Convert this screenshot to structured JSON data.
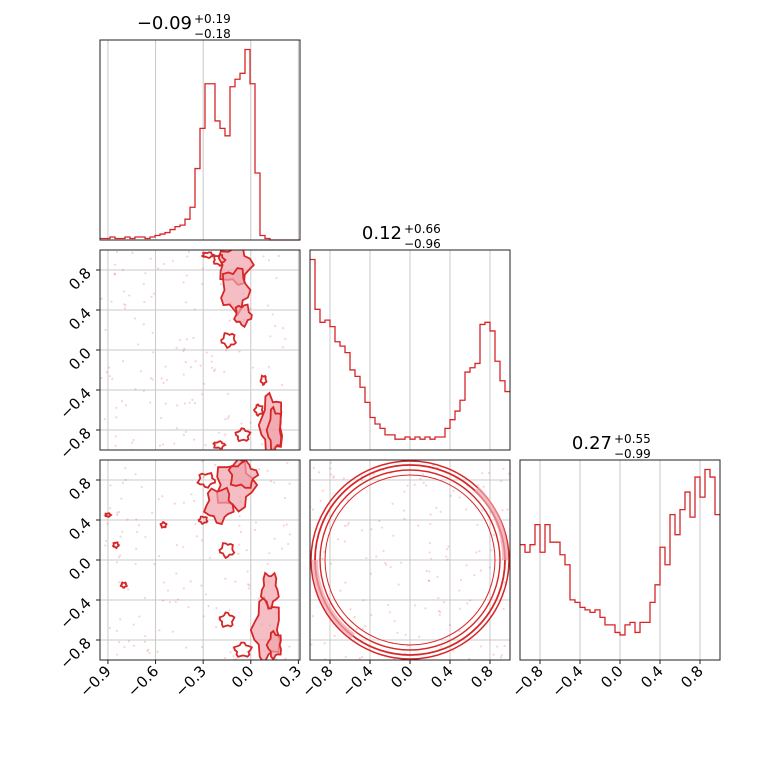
{
  "chart_data": {
    "type": "corner",
    "color": "#d62728",
    "fill_color": "#f0a3ab",
    "params": [
      {
        "median": "−0.09",
        "plus": "+0.19",
        "minus": "−0.18",
        "range": [
          -0.95,
          0.31
        ],
        "ticks": [
          -0.9,
          -0.6,
          -0.3,
          0.0,
          0.3
        ],
        "tick_labels": [
          "−0.9",
          "−0.6",
          "−0.3",
          "0.0",
          "0.3"
        ]
      },
      {
        "median": "0.12",
        "plus": "+0.66",
        "minus": "−0.96",
        "range": [
          -1.0,
          1.0
        ],
        "ticks": [
          -0.8,
          -0.4,
          0.0,
          0.4,
          0.8
        ],
        "tick_labels": [
          "−0.8",
          "−0.4",
          "0.0",
          "0.4",
          "0.8"
        ]
      },
      {
        "median": "0.27",
        "plus": "+0.55",
        "minus": "−0.99",
        "range": [
          -1.0,
          1.0
        ],
        "ticks": [
          -0.8,
          -0.4,
          0.0,
          0.4,
          0.8
        ],
        "tick_labels": [
          "−0.8",
          "−0.4",
          "0.0",
          "0.4",
          "0.8"
        ]
      }
    ],
    "hist1d": [
      {
        "bin_start": -0.95,
        "bin_width": 0.0315,
        "values": [
          1,
          1,
          2,
          1,
          1,
          2,
          1,
          2,
          2,
          1,
          2,
          3,
          4,
          5,
          7,
          9,
          10,
          14,
          22,
          48,
          75,
          105,
          105,
          80,
          75,
          70,
          103,
          108,
          112,
          128,
          105,
          45,
          3,
          1,
          0,
          0,
          0,
          0,
          0,
          0
        ]
      },
      {
        "bin_start": -1.0,
        "bin_width": 0.05,
        "values": [
          88,
          65,
          59,
          60,
          57,
          50,
          48,
          45,
          37,
          34,
          29,
          22,
          15,
          12,
          10,
          7,
          7,
          5,
          5,
          6,
          5,
          6,
          5,
          6,
          5,
          6,
          6,
          10,
          14,
          18,
          23,
          36,
          38,
          40,
          58,
          59,
          55,
          41,
          32,
          27
        ]
      },
      {
        "bin_start": -1.0,
        "bin_width": 0.05,
        "values": [
          46,
          43,
          46,
          54,
          43,
          54,
          47,
          47,
          42,
          38,
          24,
          23,
          21,
          20,
          19,
          20,
          17,
          14,
          14,
          11,
          10,
          14,
          15,
          11,
          15,
          15,
          23,
          30,
          45,
          38,
          58,
          50,
          60,
          67,
          57,
          73,
          65,
          76,
          73,
          58
        ]
      }
    ],
    "pair_description": [
      {
        "panel": "p1-vs-p0",
        "description": "dense blobs near p0 ≈ −0.2..0.0 for p1 ≈ 0.3..1.0 and near p0 ≈ 0.1..0.2 for p1 ≈ −1.0..−0.4, with sparse scatter"
      },
      {
        "panel": "p2-vs-p0",
        "description": "dense blobs near p0 ≈ −0.2..0.0 for p2 ≈ 0.4..1.0 and near p0 ≈ 0.1..0.2 for p2 ≈ −1.0..0.0, sparse scatter elsewhere"
      },
      {
        "panel": "p2-vs-p1",
        "description": "ring of radius ≈ 0.95 centered at origin (p1² + p2² ≈ 0.9)"
      }
    ],
    "grid": true
  }
}
